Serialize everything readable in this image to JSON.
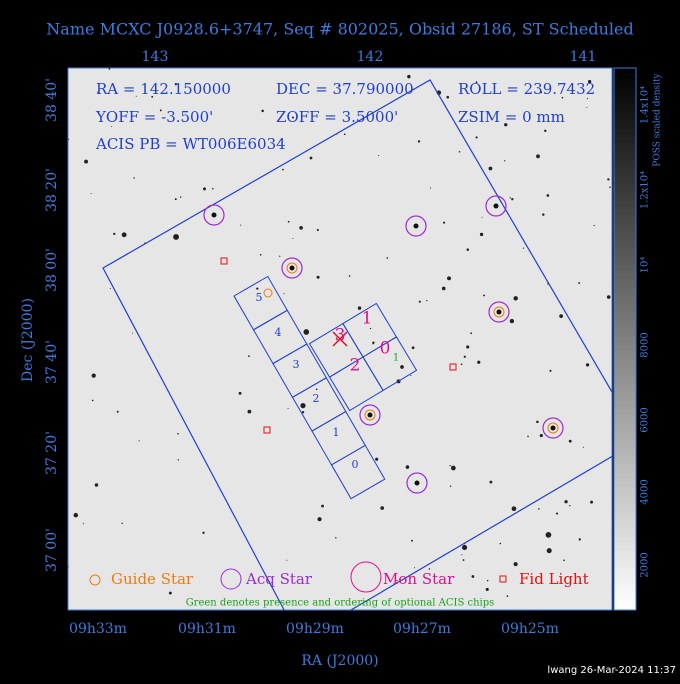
{
  "header": {
    "title": "Name MCXC J0928.6+3747, Seq # 802025, Obsid 27186, ST Scheduled"
  },
  "top_axis": {
    "labels": [
      "143",
      "142",
      "141"
    ]
  },
  "left_axis": {
    "title": "Dec (J2000)",
    "labels": [
      "38 40'",
      "38 20'",
      "38 00'",
      "37 40'",
      "37 20'",
      "37 00'"
    ]
  },
  "bottom_axis": {
    "title": "RA (J2000)",
    "labels": [
      "09h33m",
      "09h31m",
      "09h29m",
      "09h27m",
      "09h25m"
    ]
  },
  "info": {
    "lines": [
      [
        "RA = 142.150000",
        "DEC = 37.790000",
        "ROLL = 239.7432"
      ],
      [
        "YOFF = -3.500'",
        "ZOFF = 3.5000'",
        "ZSIM = 0 mm"
      ],
      [
        "ACIS PB = WT006E6034"
      ]
    ]
  },
  "chips": {
    "s_array": [
      "0",
      "1",
      "2",
      "3",
      "4",
      "5"
    ],
    "i_array": [
      "0",
      "1",
      "2",
      "3"
    ],
    "optional": "1"
  },
  "legend": {
    "items": [
      "Guide Star",
      "Acq Star",
      "Mon Star",
      "Fid Light"
    ],
    "note": "Green denotes presence and ordering of optional ACIS chips"
  },
  "colorbar": {
    "title": "POSS scaled density",
    "labels": [
      "1.4x10⁴",
      "1.2x10⁴",
      "10⁴",
      "8000",
      "6000",
      "4000",
      "2000"
    ]
  },
  "footer": {
    "credit": "lwang 26-Mar-2024 11:37"
  }
}
